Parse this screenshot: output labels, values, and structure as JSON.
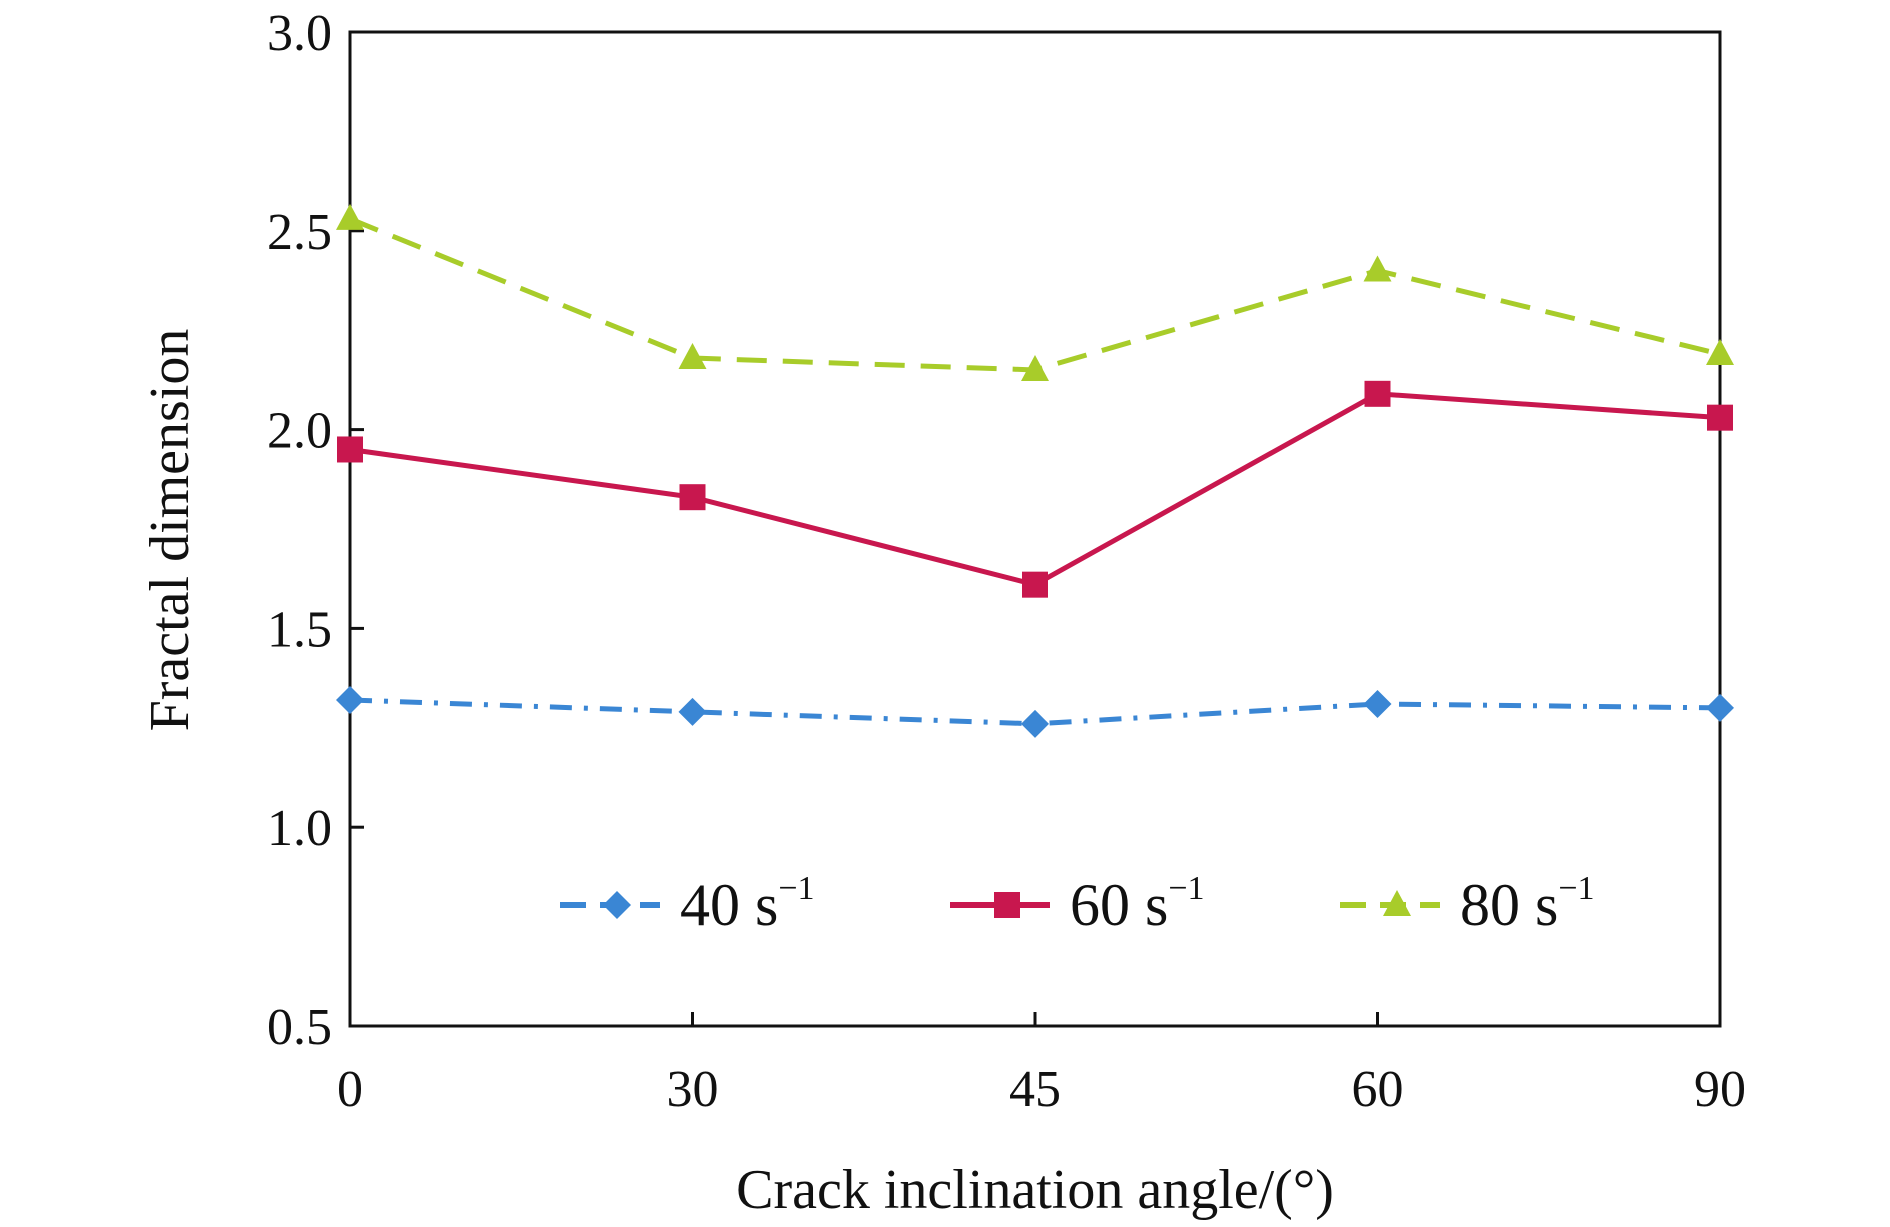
{
  "chart_data": {
    "type": "line",
    "x_categories": [
      "0",
      "30",
      "45",
      "60",
      "90"
    ],
    "xlabel": "Crack inclination angle/(°)",
    "ylabel": "Fractal dimension",
    "ylim": [
      0.5,
      3.0
    ],
    "yticks": [
      "0.5",
      "1.0",
      "1.5",
      "2.0",
      "2.5",
      "3.0"
    ],
    "ytick_values": [
      0.5,
      1.0,
      1.5,
      2.0,
      2.5,
      3.0
    ],
    "grid": false,
    "legend_position": "lower-center-inside",
    "series": [
      {
        "name": "40 s",
        "name_sup": "−1",
        "values": [
          1.32,
          1.29,
          1.26,
          1.31,
          1.3
        ],
        "color": "#3a86d4",
        "marker": "diamond",
        "line_style": "dash-dot"
      },
      {
        "name": "60 s",
        "name_sup": "−1",
        "values": [
          1.95,
          1.83,
          1.61,
          2.09,
          2.03
        ],
        "color": "#c8174e",
        "marker": "square",
        "line_style": "solid"
      },
      {
        "name": "80 s",
        "name_sup": "−1",
        "values": [
          2.53,
          2.18,
          2.15,
          2.4,
          2.19
        ],
        "color": "#a8cc2a",
        "marker": "triangle",
        "line_style": "dashed"
      }
    ]
  }
}
